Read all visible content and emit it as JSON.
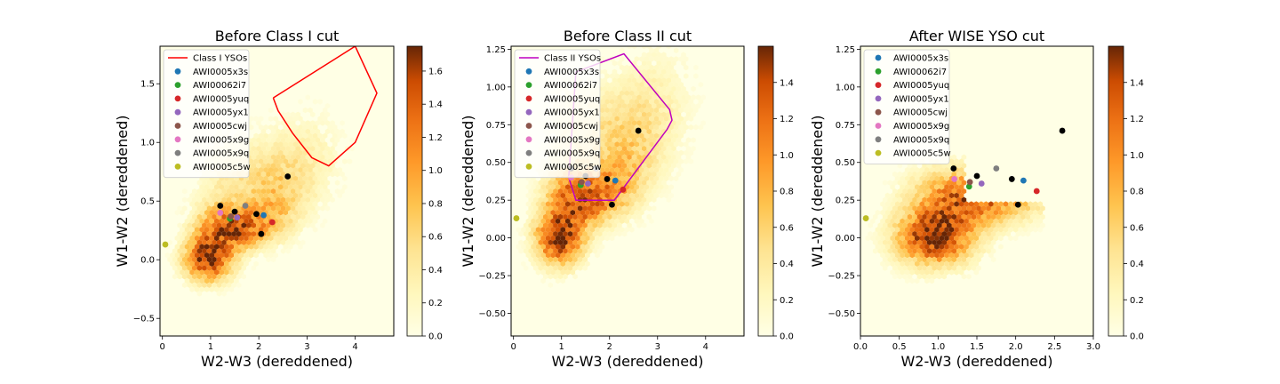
{
  "chart_data": [
    {
      "type": "scatter",
      "title": "Before Class I cut",
      "xlabel": "W2-W3 (dereddened)",
      "ylabel": "W1-W2 (dereddened)",
      "xlim": [
        -0.05,
        4.8
      ],
      "ylim": [
        -0.65,
        1.82
      ],
      "xticks": [
        0,
        1,
        2,
        3,
        4
      ],
      "yticks": [
        -0.5,
        0.0,
        0.5,
        1.0,
        1.5
      ],
      "colorbar": {
        "min": 0.0,
        "max": 1.75,
        "ticks": [
          0.0,
          0.2,
          0.4,
          0.6,
          0.8,
          1.0,
          1.2,
          1.4,
          1.6
        ]
      },
      "cut_region": {
        "name": "Class I YSOs",
        "color": "#ff0000",
        "x": [
          2.3,
          4.0,
          4.45,
          4.0,
          3.45,
          3.1,
          2.7,
          2.4,
          2.3
        ],
        "y": [
          1.38,
          1.82,
          1.42,
          1.0,
          0.8,
          0.87,
          1.08,
          1.27,
          1.38
        ]
      },
      "legend_location": "upper-left",
      "series": [
        {
          "name": "AWI0005x3s",
          "color": "#1f77b4",
          "x": [
            2.1
          ],
          "y": [
            0.38
          ]
        },
        {
          "name": "AWI00062i7",
          "color": "#2ca02c",
          "x": [
            1.4
          ],
          "y": [
            0.35
          ]
        },
        {
          "name": "AWI0005yuq",
          "color": "#d62728",
          "x": [
            2.28
          ],
          "y": [
            0.32
          ]
        },
        {
          "name": "AWI0005yx1",
          "color": "#9467bd",
          "x": [
            1.55
          ],
          "y": [
            0.36
          ]
        },
        {
          "name": "AWI0005cwj",
          "color": "#8c564b",
          "x": [
            1.42
          ],
          "y": [
            0.37
          ]
        },
        {
          "name": "AWI0005x9g",
          "color": "#e377c2",
          "x": [
            1.2
          ],
          "y": [
            0.4
          ]
        },
        {
          "name": "AWI0005x9q",
          "color": "#7f7f7f",
          "x": [
            1.72
          ],
          "y": [
            0.46
          ]
        },
        {
          "name": "AWI0005c5w",
          "color": "#bcbd22",
          "x": [
            0.06
          ],
          "y": [
            0.13
          ]
        }
      ],
      "black_points": {
        "color": "#000000",
        "x": [
          1.2,
          1.5,
          1.95,
          2.05,
          2.6
        ],
        "y": [
          0.46,
          0.41,
          0.39,
          0.22,
          0.71
        ]
      }
    },
    {
      "type": "scatter",
      "title": "Before Class II cut",
      "xlabel": "W2-W3 (dereddened)",
      "ylabel": "W1-W2 (dereddened)",
      "xlim": [
        -0.05,
        4.8
      ],
      "ylim": [
        -0.65,
        1.27
      ],
      "xticks": [
        0,
        1,
        2,
        3,
        4
      ],
      "yticks": [
        -0.5,
        -0.25,
        0.0,
        0.25,
        0.5,
        0.75,
        1.0,
        1.25
      ],
      "colorbar": {
        "min": 0.0,
        "max": 1.6,
        "ticks": [
          0.0,
          0.2,
          0.4,
          0.6,
          0.8,
          1.0,
          1.2,
          1.4
        ]
      },
      "cut_region": {
        "name": "Class II YSOs",
        "color": "#bf00bf",
        "x": [
          1.3,
          2.3,
          3.25,
          3.3,
          3.2,
          2.1,
          1.3,
          1.15,
          1.3
        ],
        "y": [
          1.1,
          1.22,
          0.85,
          0.78,
          0.72,
          0.25,
          0.25,
          0.4,
          1.1
        ]
      },
      "legend_location": "upper-left",
      "series": [
        {
          "name": "AWI0005x3s",
          "color": "#1f77b4",
          "x": [
            2.12
          ],
          "y": [
            0.38
          ]
        },
        {
          "name": "AWI00062i7",
          "color": "#2ca02c",
          "x": [
            1.4
          ],
          "y": [
            0.35
          ]
        },
        {
          "name": "AWI0005yuq",
          "color": "#d62728",
          "x": [
            2.28
          ],
          "y": [
            0.32
          ]
        },
        {
          "name": "AWI0005yx1",
          "color": "#9467bd",
          "x": [
            1.55
          ],
          "y": [
            0.36
          ]
        },
        {
          "name": "AWI0005cwj",
          "color": "#8c564b",
          "x": [
            1.42
          ],
          "y": [
            0.37
          ]
        },
        {
          "name": "AWI0005x9g",
          "color": "#e377c2",
          "x": [
            1.2
          ],
          "y": [
            0.4
          ]
        },
        {
          "name": "AWI0005x9q",
          "color": "#7f7f7f",
          "x": [
            1.72
          ],
          "y": [
            0.46
          ]
        },
        {
          "name": "AWI0005c5w",
          "color": "#bcbd22",
          "x": [
            0.06
          ],
          "y": [
            0.13
          ]
        }
      ],
      "black_points": {
        "color": "#000000",
        "x": [
          1.2,
          1.5,
          1.95,
          2.05,
          2.6
        ],
        "y": [
          0.46,
          0.41,
          0.39,
          0.22,
          0.71
        ]
      }
    },
    {
      "type": "scatter",
      "title": "After WISE YSO cut",
      "xlabel": "W2-W3 (dereddened)",
      "ylabel": "W1-W2 (dereddened)",
      "xlim": [
        0.0,
        3.0
      ],
      "ylim": [
        -0.65,
        1.27
      ],
      "xticks": [
        0.0,
        0.5,
        1.0,
        1.5,
        2.0,
        2.5,
        3.0
      ],
      "yticks": [
        -0.5,
        -0.25,
        0.0,
        0.25,
        0.5,
        0.75,
        1.0,
        1.25
      ],
      "colorbar": {
        "min": 0.0,
        "max": 1.6,
        "ticks": [
          0.0,
          0.2,
          0.4,
          0.6,
          0.8,
          1.0,
          1.2,
          1.4
        ]
      },
      "legend_location": "upper-left",
      "series": [
        {
          "name": "AWI0005x3s",
          "color": "#1f77b4",
          "x": [
            2.1
          ],
          "y": [
            0.38
          ]
        },
        {
          "name": "AWI00062i7",
          "color": "#2ca02c",
          "x": [
            1.4
          ],
          "y": [
            0.34
          ]
        },
        {
          "name": "AWI0005yuq",
          "color": "#d62728",
          "x": [
            2.27
          ],
          "y": [
            0.31
          ]
        },
        {
          "name": "AWI0005yx1",
          "color": "#9467bd",
          "x": [
            1.56
          ],
          "y": [
            0.36
          ]
        },
        {
          "name": "AWI0005cwj",
          "color": "#8c564b",
          "x": [
            1.41
          ],
          "y": [
            0.37
          ]
        },
        {
          "name": "AWI0005x9g",
          "color": "#e377c2",
          "x": [
            1.21
          ],
          "y": [
            0.39
          ]
        },
        {
          "name": "AWI0005x9q",
          "color": "#7f7f7f",
          "x": [
            1.75
          ],
          "y": [
            0.46
          ]
        },
        {
          "name": "AWI0005c5w",
          "color": "#bcbd22",
          "x": [
            0.07
          ],
          "y": [
            0.13
          ]
        }
      ],
      "black_points": {
        "color": "#000000",
        "x": [
          1.2,
          1.5,
          1.95,
          2.03,
          2.6
        ],
        "y": [
          0.46,
          0.41,
          0.39,
          0.22,
          0.71
        ]
      }
    }
  ]
}
